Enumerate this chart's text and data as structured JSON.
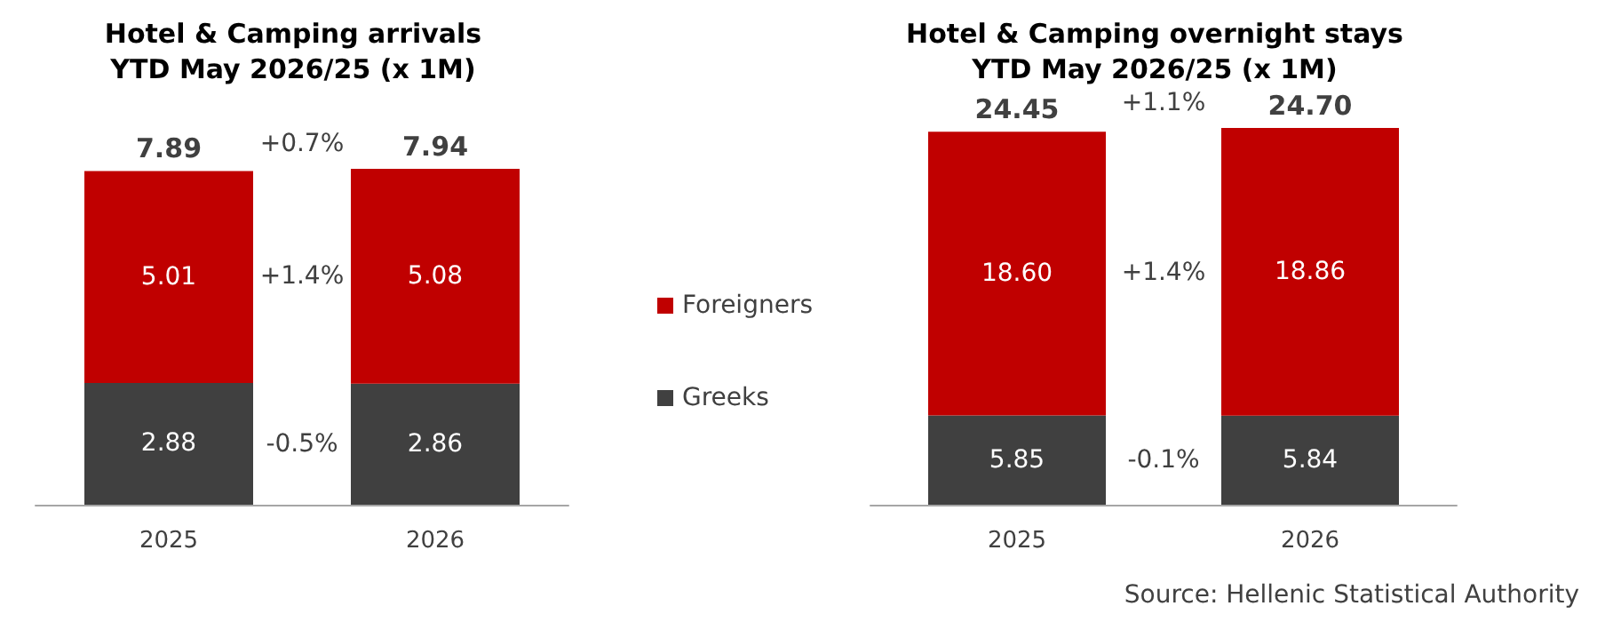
{
  "chart_data": [
    {
      "type": "bar",
      "title": "Hotel & Camping arrivals\nYTD May 2026/25 (x 1M)",
      "categories": [
        "2025",
        "2026"
      ],
      "stacked": true,
      "data_labels": true,
      "legend": "right",
      "totals": [
        "7.89",
        "7.94"
      ],
      "series": [
        {
          "name": "Greeks",
          "color": "#404040",
          "values": [
            2.88,
            2.86
          ]
        },
        {
          "name": "Foreigners",
          "color": "#c00000",
          "values": [
            5.01,
            5.08
          ]
        }
      ],
      "annotations": [
        "+0.7%",
        "+1.4%",
        "-0.5%"
      ]
    },
    {
      "type": "bar",
      "title": "Hotel & Camping overnight stays\nYTD May 2026/25 (x 1M)",
      "categories": [
        "2025",
        "2026"
      ],
      "stacked": true,
      "legend": false,
      "totals": [
        "24.45",
        "24.70"
      ],
      "series": [
        {
          "color": "#404040",
          "values": [
            5.85,
            5.84
          ],
          "value_labels": [
            "5.85",
            "5.84"
          ]
        },
        {
          "color": "#c00000",
          "values": [
            18.6,
            18.86
          ],
          "value_labels": [
            "18.60",
            "18.86"
          ]
        }
      ],
      "annotations": [
        "+1.1%",
        "+1.4%",
        "-0.1%",
        "Source: Hellenic Statistical Authority"
      ]
    }
  ]
}
